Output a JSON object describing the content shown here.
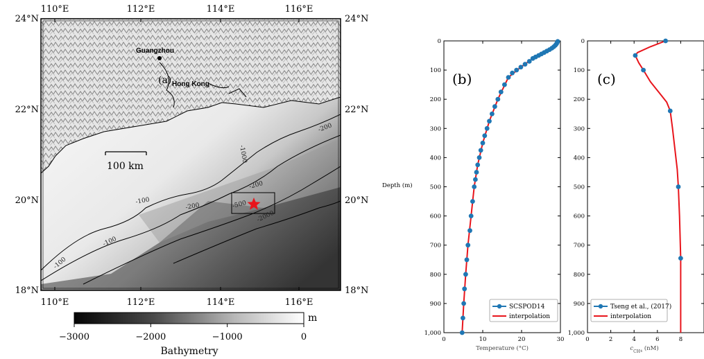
{
  "colors": {
    "profile_marker": "#1f77b4",
    "profile_line": "#e8141b",
    "star": "#e8141b",
    "frame": "#000000"
  },
  "map": {
    "panel_label": "(a)",
    "lon_ticks": [
      "110°E",
      "112°E",
      "114°E",
      "116°E"
    ],
    "lat_ticks": [
      "24°N",
      "22°N",
      "20°N",
      "18°N"
    ],
    "places": [
      {
        "name": "Guangzhou"
      },
      {
        "name": "Hong Kong"
      }
    ],
    "scale_bar": "100 km",
    "contours": [
      "-100",
      "-100",
      "-100",
      "-200",
      "-200",
      "-200",
      "-1000",
      "-500",
      "-2000"
    ],
    "study_site_icon": "red-star-icon",
    "colorbar": {
      "unit": "m",
      "label": "Bathymetry",
      "ticks": [
        "−3000",
        "−2000",
        "−1000",
        "0"
      ]
    }
  },
  "chart_data": [
    {
      "type": "line",
      "panel_label": "(b)",
      "xlabel": "Temperature (°C)",
      "ylabel": "Depth (m)",
      "xlim": [
        0,
        30
      ],
      "ylim": [
        0,
        1000
      ],
      "y_inverted": true,
      "x_ticks": [
        "0",
        "10",
        "20",
        "30"
      ],
      "y_ticks": [
        "0",
        "100",
        "200",
        "300",
        "400",
        "500",
        "600",
        "700",
        "800",
        "900",
        "1,000"
      ],
      "legend_position": "bottom-right",
      "series": [
        {
          "name": "SCSPOD14",
          "style": "markers",
          "x": [
            29.3,
            29.2,
            29.0,
            28.7,
            28.3,
            27.8,
            27.2,
            26.5,
            25.8,
            25.1,
            24.4,
            23.6,
            22.9,
            22.0,
            20.9,
            19.8,
            18.7,
            17.6,
            16.6,
            15.6,
            14.7,
            13.9,
            13.1,
            12.4,
            11.7,
            11.1,
            10.5,
            10.0,
            9.5,
            9.1,
            8.7,
            8.4,
            8.1,
            7.8,
            7.4,
            7.0,
            6.7,
            6.2,
            5.9,
            5.6,
            5.3,
            5.1,
            4.9,
            4.7
          ],
          "y": [
            2,
            5,
            10,
            15,
            20,
            25,
            30,
            35,
            40,
            45,
            50,
            55,
            60,
            70,
            80,
            90,
            100,
            110,
            125,
            150,
            175,
            200,
            225,
            250,
            275,
            300,
            325,
            350,
            375,
            400,
            425,
            450,
            475,
            500,
            550,
            600,
            650,
            700,
            750,
            800,
            850,
            900,
            950,
            1000
          ]
        },
        {
          "name": "interpolation",
          "style": "line",
          "x": [
            29.3,
            28.7,
            27.2,
            25.1,
            22.9,
            19.8,
            16.6,
            13.9,
            11.7,
            10.0,
            8.7,
            7.8,
            7.0,
            6.2,
            5.6,
            5.1,
            4.7
          ],
          "y": [
            0,
            15,
            30,
            45,
            60,
            90,
            125,
            200,
            275,
            350,
            425,
            500,
            600,
            700,
            800,
            900,
            1000
          ]
        }
      ]
    },
    {
      "type": "line",
      "panel_label": "(c)",
      "xlabel": "c",
      "xlabel_subscript": "CH",
      "xlabel_subscript_index": "4",
      "xlabel_unit": " (nM)",
      "xlim": [
        0,
        10
      ],
      "ylim": [
        0,
        1000
      ],
      "y_inverted": true,
      "x_ticks": [
        "0",
        "2",
        "4",
        "6",
        "8"
      ],
      "legend_position": "bottom-left",
      "series": [
        {
          "name": "Tseng et al., (2017)",
          "style": "markers",
          "x": [
            6.7,
            4.1,
            4.8,
            7.1,
            7.8,
            8.0
          ],
          "y": [
            0,
            50,
            100,
            240,
            500,
            745
          ]
        },
        {
          "name": "interpolation",
          "style": "line",
          "x": [
            6.7,
            5.4,
            4.3,
            4.1,
            4.4,
            4.8,
            5.4,
            6.2,
            6.8,
            7.1,
            7.3,
            7.5,
            7.7,
            7.8,
            7.9,
            8.0,
            8.0,
            8.0,
            8.0
          ],
          "y": [
            0,
            20,
            40,
            50,
            75,
            100,
            140,
            180,
            210,
            240,
            300,
            370,
            440,
            500,
            600,
            745,
            850,
            950,
            1000
          ]
        }
      ]
    }
  ]
}
